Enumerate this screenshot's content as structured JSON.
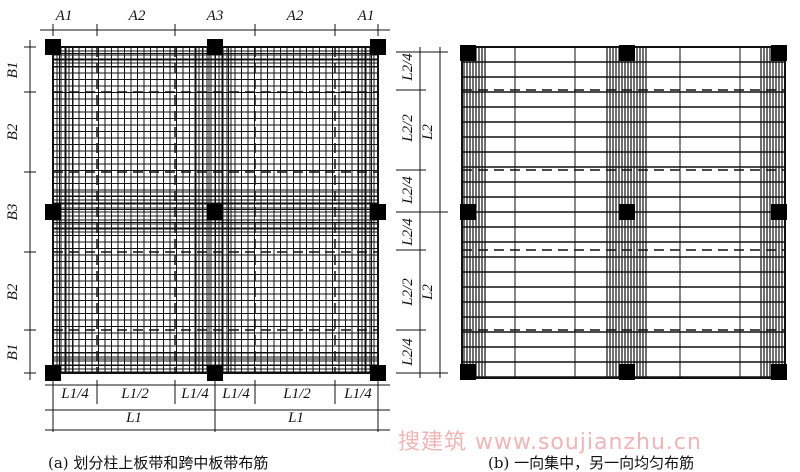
{
  "panel_a": {
    "top_labels": [
      "A1",
      "A2",
      "A3",
      "A2",
      "A1"
    ],
    "left_labels": [
      "B1",
      "B2",
      "B3",
      "B2",
      "B1"
    ],
    "bottom_sub_labels": [
      "L1/4",
      "L1/2",
      "L1/4",
      "L1/4",
      "L1/2",
      "L1/4"
    ],
    "bottom_labels": [
      "L1",
      "L1"
    ],
    "caption": "(a) 划分柱上板带和跨中板带布筋"
  },
  "panel_b": {
    "side_sub_labels": [
      "L2/4",
      "L2/2",
      "L2/4",
      "L2/4",
      "L2/2",
      "L2/4"
    ],
    "side_labels": [
      "L2",
      "L2"
    ],
    "caption": "(b) 一向集中，另一向均匀布筋"
  },
  "watermark": "搜建筑 www.soujianzhu.cn",
  "colors": {
    "line": "#111111",
    "watermark": "#f2b4b4"
  }
}
